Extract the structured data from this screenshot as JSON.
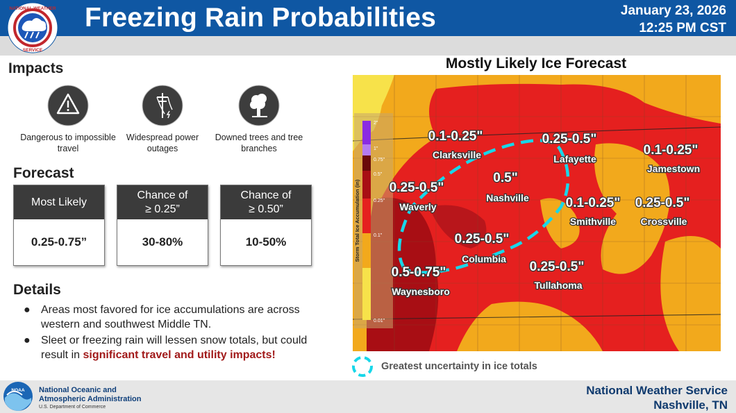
{
  "header": {
    "title": "Freezing Rain Probabilities",
    "date": "January 23, 2026",
    "time": "12:25 PM CST",
    "logo_text": "NATIONAL WEATHER SERVICE"
  },
  "impacts": {
    "heading": "Impacts",
    "items": [
      {
        "icon": "warning-triangle-icon",
        "label": "Dangerous to impossible travel"
      },
      {
        "icon": "power-line-icon",
        "label": "Widespread power outages"
      },
      {
        "icon": "downed-tree-icon",
        "label": "Downed trees and tree branches"
      }
    ]
  },
  "forecast": {
    "heading": "Forecast",
    "boxes": [
      {
        "label": "Most Likely",
        "value": "0.25-0.75”"
      },
      {
        "label": "Chance of\n≥ 0.25”",
        "value": "30-80%"
      },
      {
        "label": "Chance of\n≥ 0.50”",
        "value": "10-50%"
      }
    ]
  },
  "details": {
    "heading": "Details",
    "bullet_1": "Areas most favored for ice accumulations are across western and southwest Middle TN.",
    "bullet_2_plain": "Sleet or freezing rain will lessen snow totals, but could result in ",
    "bullet_2_emphasis": "significant travel and utility impacts!"
  },
  "map": {
    "title": "Mostly Likely Ice Forecast",
    "colorbar_title": "Storm Total Ice Accumulation (in)",
    "colorbar_ticks": [
      "2\"",
      "1\"",
      "0.75\"",
      "0.5\"",
      "0.25\"",
      "0.1\"",
      "0.01\""
    ],
    "labels": [
      {
        "city": "Clarksville",
        "amount": "0.1-0.25\""
      },
      {
        "city": "Lafayette",
        "amount": "0.25-0.5\""
      },
      {
        "city": "Jamestown",
        "amount": "0.1-0.25\""
      },
      {
        "city": "Waverly",
        "amount": "0.25-0.5\""
      },
      {
        "city": "Nashville",
        "amount": "0.5\""
      },
      {
        "city": "Smithville",
        "amount": "0.1-0.25\""
      },
      {
        "city": "Crossville",
        "amount": "0.25-0.5\""
      },
      {
        "city": "Columbia",
        "amount": "0.25-0.5\""
      },
      {
        "city": "Waynesboro",
        "amount": "0.5-0.75\""
      },
      {
        "city": "Tullahoma",
        "amount": "0.25-0.5\""
      }
    ],
    "uncertainty_note": "Greatest uncertainty in ice totals",
    "colors": {
      "light": "#f7e24a",
      "orange": "#f2a91c",
      "red": "#e5201f",
      "dark_red": "#a80e14",
      "uncertainty": "#17d7e9"
    }
  },
  "footer": {
    "agency_line_1": "National Oceanic and",
    "agency_line_2": "Atmospheric Administration",
    "department": "U.S. Department of Commerce",
    "office_line_1": "National Weather Service",
    "office_line_2": "Nashville, TN",
    "noaa_logo_text": "NOAA"
  }
}
